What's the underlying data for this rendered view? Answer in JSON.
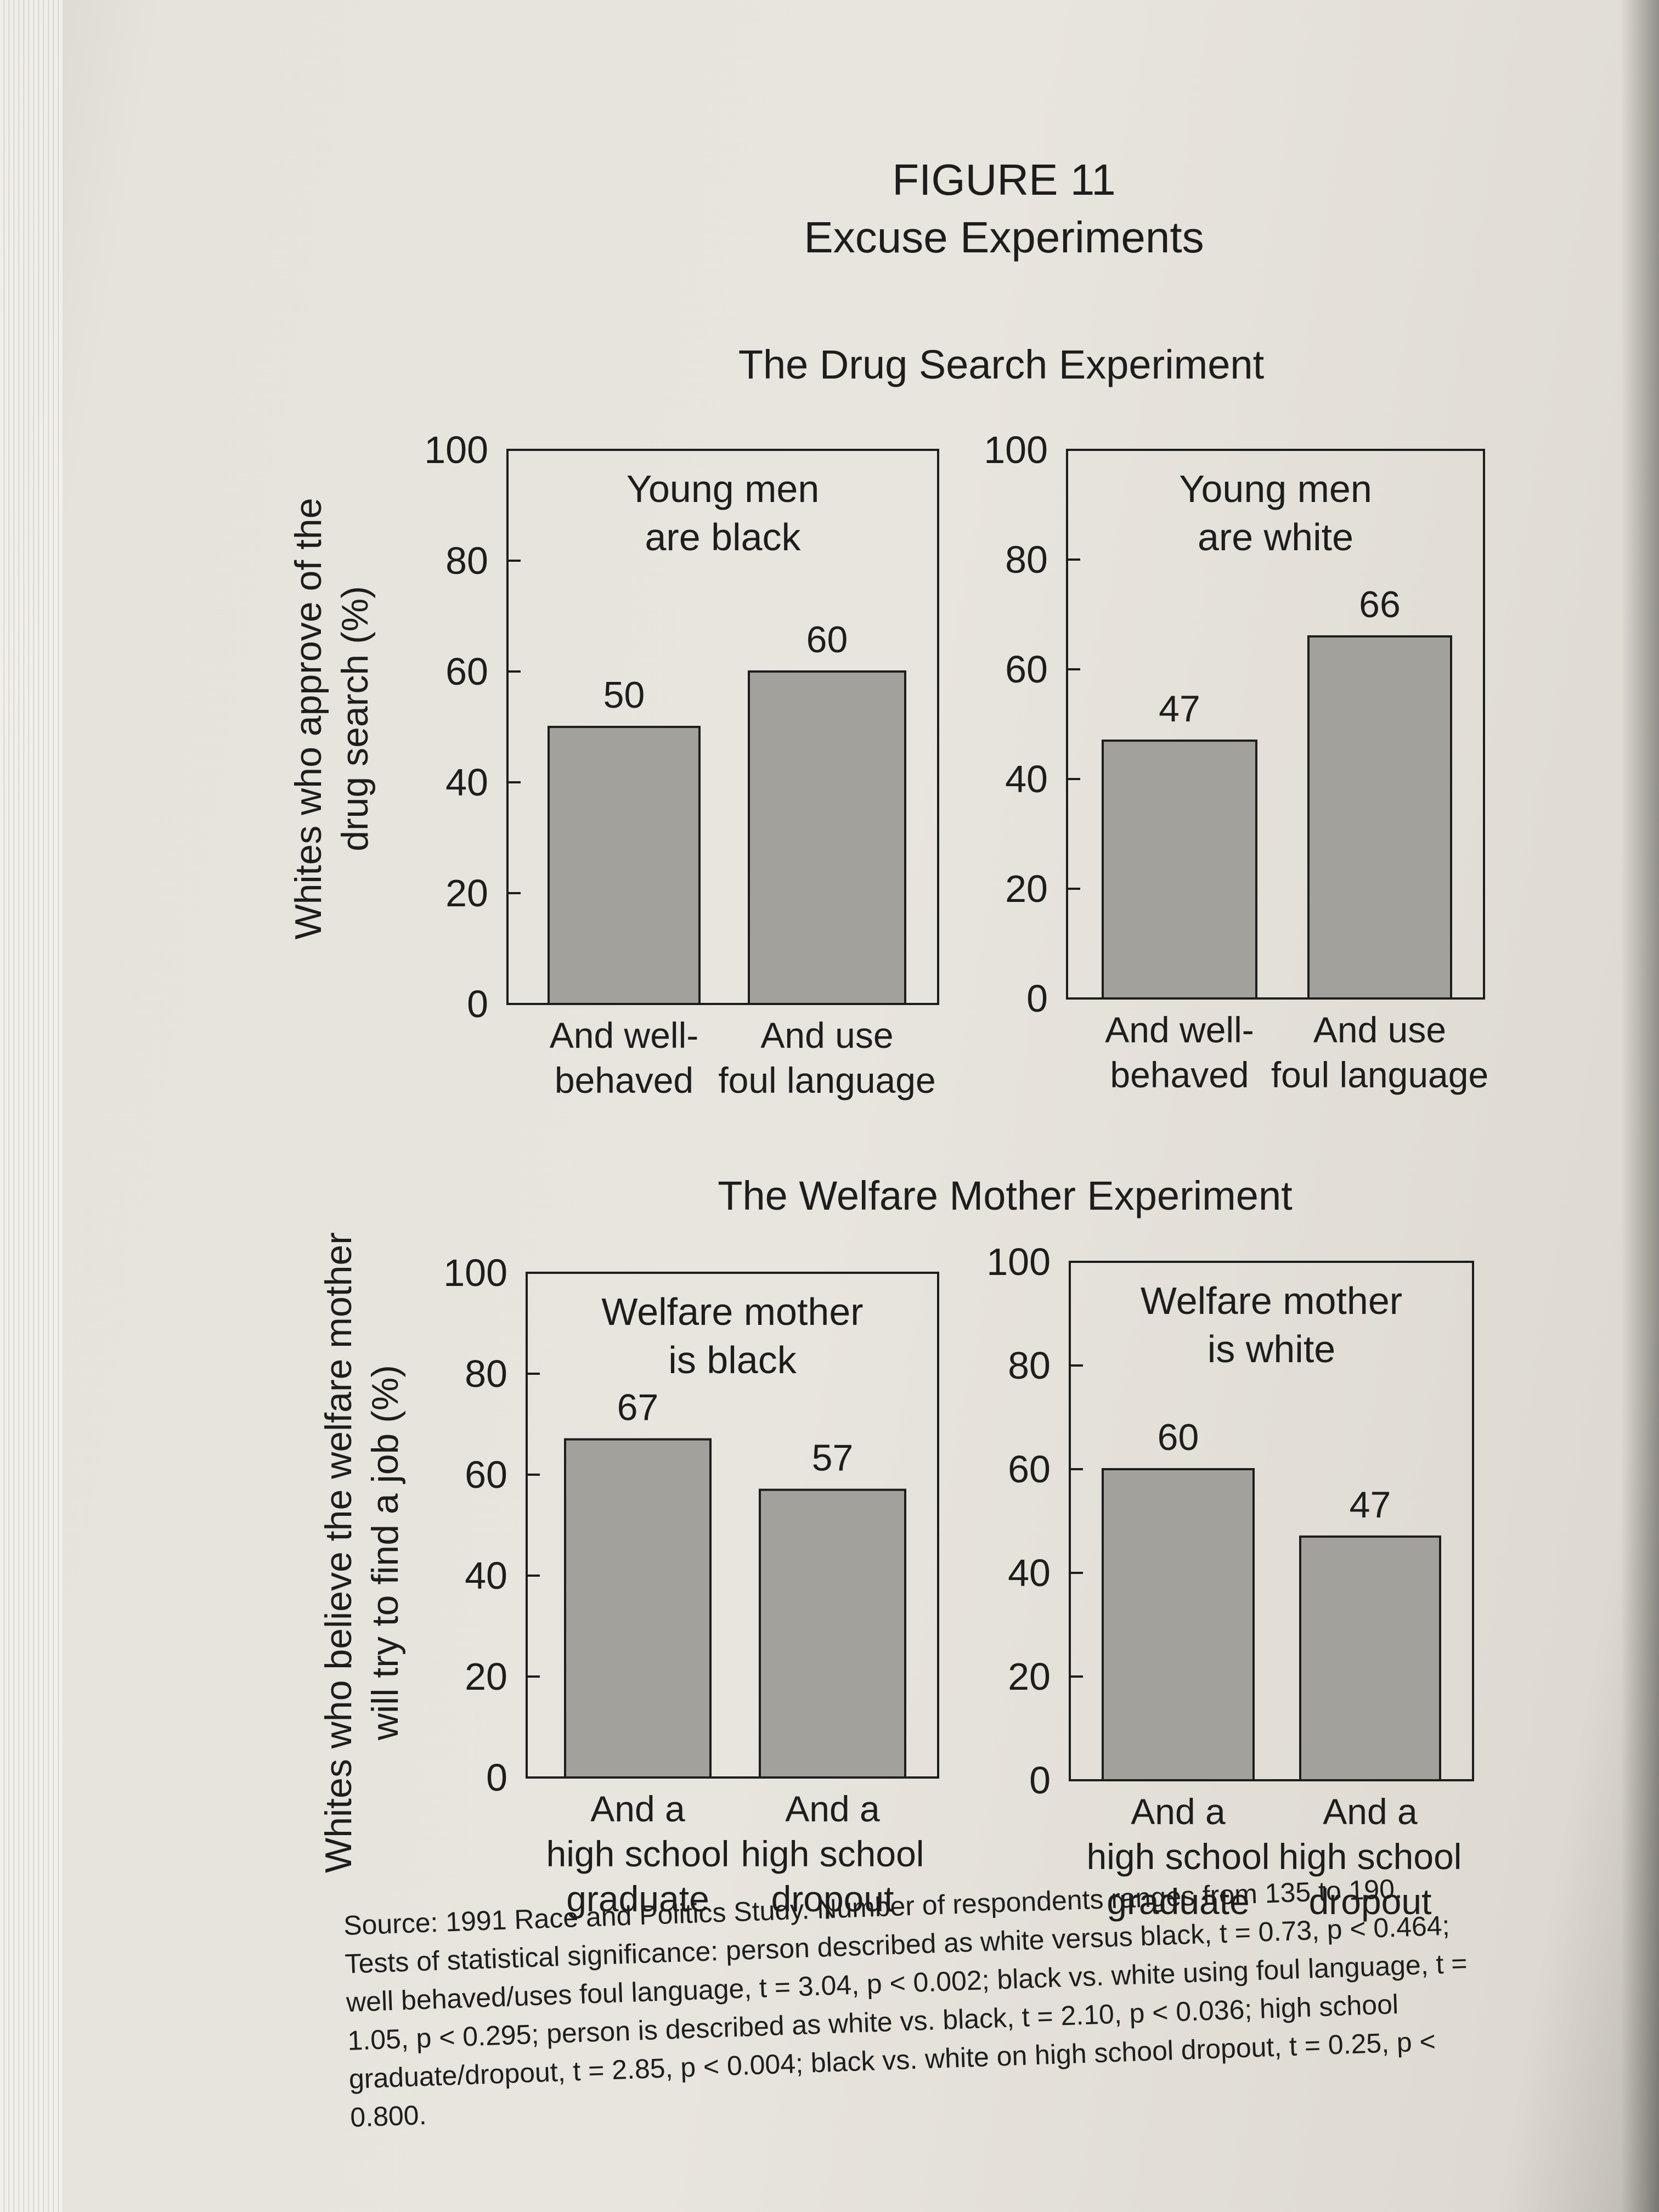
{
  "figure": {
    "number": "FIGURE 11",
    "title": "Excuse Experiments"
  },
  "sections": {
    "drug_search": {
      "title": "The Drug Search Experiment",
      "ylabel_line1": "Whites who approve of the",
      "ylabel_line2": "drug search (%)"
    },
    "welfare": {
      "title": "The Welfare Mother Experiment",
      "ylabel_line1": "Whites who believe the welfare mother",
      "ylabel_line2": "will try to find a job (%)"
    }
  },
  "chart_data": [
    {
      "type": "bar",
      "panel_title": [
        "Young men",
        "are black"
      ],
      "categories": [
        [
          "And well-",
          "behaved"
        ],
        [
          "And use",
          "foul language"
        ]
      ],
      "values": [
        50,
        60
      ],
      "value_labels": [
        "50",
        "60"
      ],
      "ylim": [
        0,
        100
      ],
      "yticks": [
        "0",
        "20",
        "40",
        "60",
        "80",
        "100"
      ]
    },
    {
      "type": "bar",
      "panel_title": [
        "Young men",
        "are white"
      ],
      "categories": [
        [
          "And well-",
          "behaved"
        ],
        [
          "And use",
          "foul language"
        ]
      ],
      "values": [
        47,
        66
      ],
      "value_labels": [
        "47",
        "66"
      ],
      "ylim": [
        0,
        100
      ],
      "yticks": [
        "0",
        "20",
        "40",
        "60",
        "80",
        "100"
      ]
    },
    {
      "type": "bar",
      "panel_title": [
        "Welfare mother",
        "is black"
      ],
      "categories": [
        [
          "And a",
          "high school",
          "graduate"
        ],
        [
          "And a",
          "high school",
          "dropout"
        ]
      ],
      "values": [
        67,
        57
      ],
      "value_labels": [
        "67",
        "57"
      ],
      "ylim": [
        0,
        100
      ],
      "yticks": [
        "0",
        "20",
        "40",
        "60",
        "80",
        "100"
      ]
    },
    {
      "type": "bar",
      "panel_title": [
        "Welfare mother",
        "is white"
      ],
      "categories": [
        [
          "And a",
          "high school",
          "graduate"
        ],
        [
          "And a",
          "high school",
          "dropout"
        ]
      ],
      "values": [
        60,
        47
      ],
      "value_labels": [
        "60",
        "47"
      ],
      "ylim": [
        0,
        100
      ],
      "yticks": [
        "0",
        "20",
        "40",
        "60",
        "80",
        "100"
      ]
    }
  ],
  "source_note": "Source: 1991 Race and Politics Study. Number of respondents ranges from 135 to 190. Tests of statistical significance: person described as white versus black, t = 0.73, p < 0.464; well behaved/uses foul language, t = 3.04, p < 0.002; black vs. white using foul language, t = 1.05, p < 0.295; person is described as white vs. black, t = 2.10, p < 0.036; high school graduate/dropout, t = 2.85, p < 0.004; black vs. white on high school dropout, t = 0.25, p < 0.800.",
  "colors": {
    "bar_fill": "#a3a19c",
    "frame": "#1d1d1d",
    "paper": "#e8e5de"
  }
}
